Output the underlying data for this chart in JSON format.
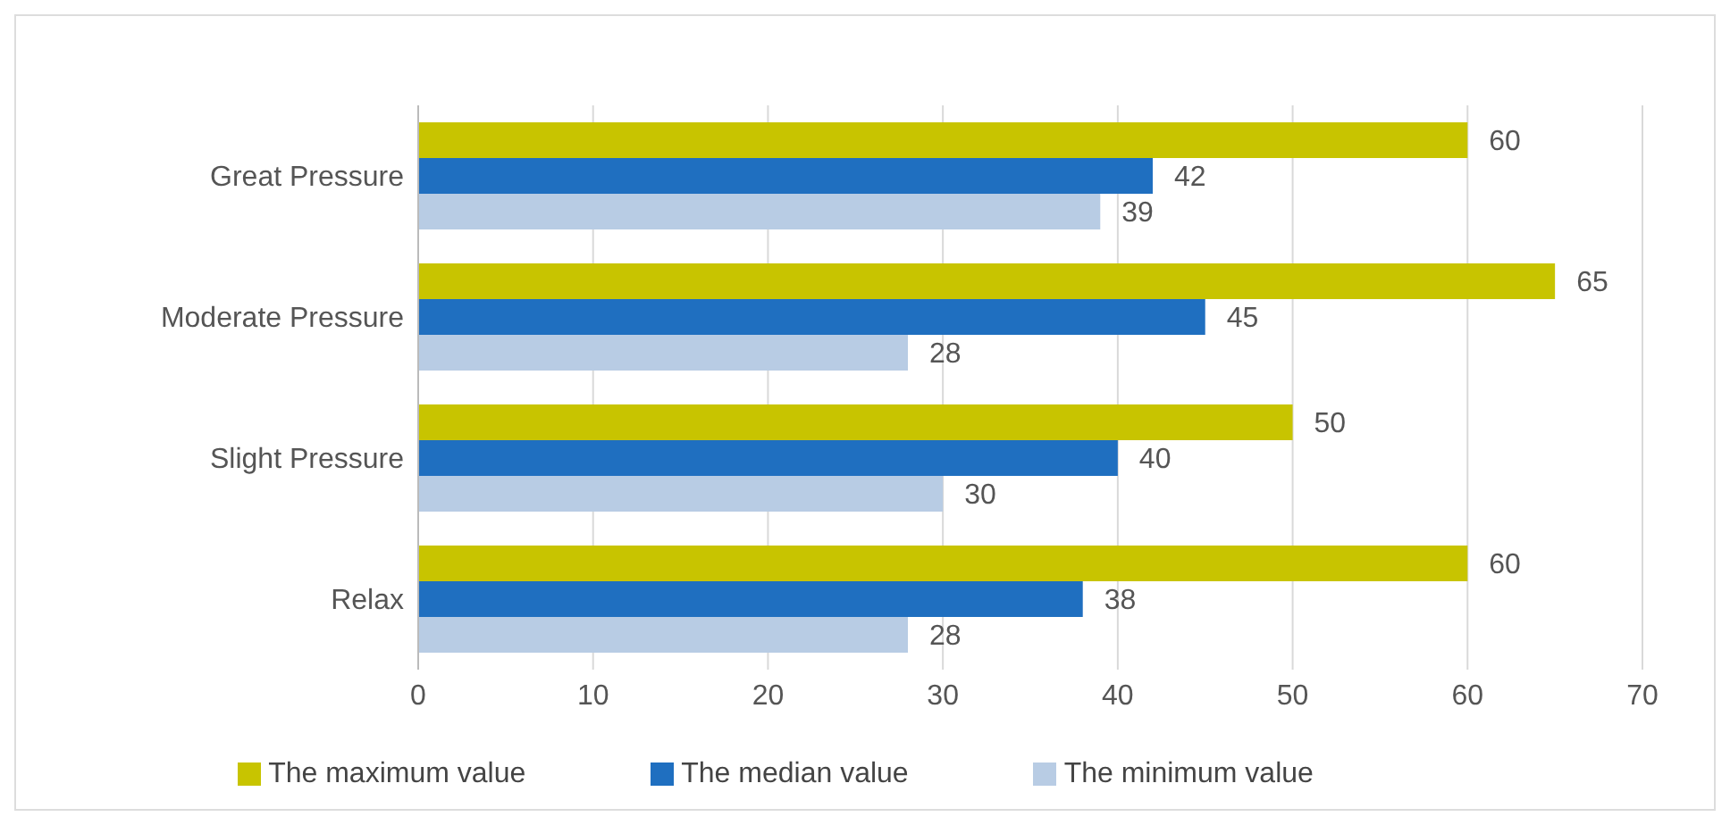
{
  "chart_data": {
    "type": "bar",
    "orientation": "horizontal",
    "categories": [
      "Great Pressure",
      "Moderate Pressure",
      "Slight Pressure",
      "Relax"
    ],
    "series": [
      {
        "name": "The maximum value",
        "color": "#c8c400",
        "values": [
          60,
          65,
          50,
          60
        ]
      },
      {
        "name": "The median value",
        "color": "#1f6fc0",
        "values": [
          42,
          45,
          40,
          38
        ]
      },
      {
        "name": "The minimum value",
        "color": "#b8cce4",
        "values": [
          39,
          28,
          30,
          28
        ]
      }
    ],
    "xlim": [
      0,
      70
    ],
    "xticks": [
      0,
      10,
      20,
      30,
      40,
      50,
      60,
      70
    ],
    "grid": "x",
    "legend": "bottom",
    "data_labels": true
  }
}
